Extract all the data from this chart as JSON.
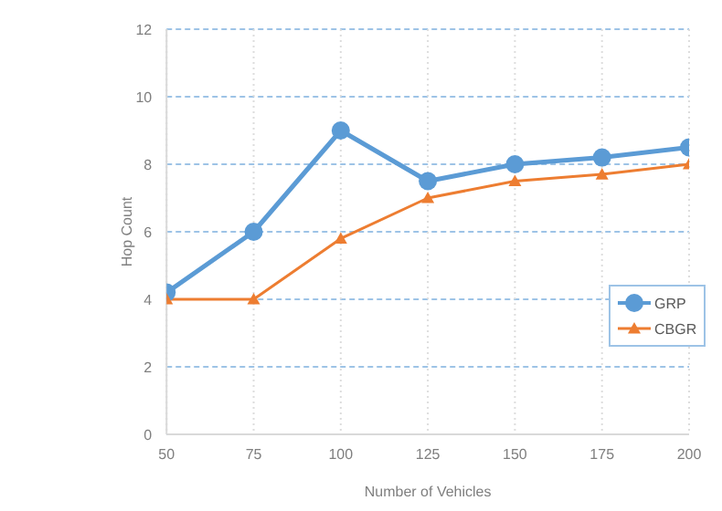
{
  "chart_data": {
    "type": "line",
    "xlabel": "Number of Vehicles",
    "ylabel": "Hop Count",
    "x": [
      50,
      75,
      100,
      125,
      150,
      175,
      200
    ],
    "series": [
      {
        "name": "GRP",
        "color": "#5b9bd5",
        "marker": "circle",
        "values": [
          4.2,
          6,
          9,
          7.5,
          8,
          8.2,
          8.5
        ]
      },
      {
        "name": "CBGR",
        "color": "#ed7d31",
        "marker": "triangle",
        "values": [
          4,
          4,
          5.8,
          7,
          7.5,
          7.7,
          8
        ]
      }
    ],
    "xlim": [
      50,
      200
    ],
    "xticks": [
      50,
      75,
      100,
      125,
      150,
      175,
      200
    ],
    "ylim": [
      0,
      12
    ],
    "yticks": [
      0,
      2,
      4,
      6,
      8,
      10,
      12
    ],
    "grid": true,
    "legend": "right"
  }
}
